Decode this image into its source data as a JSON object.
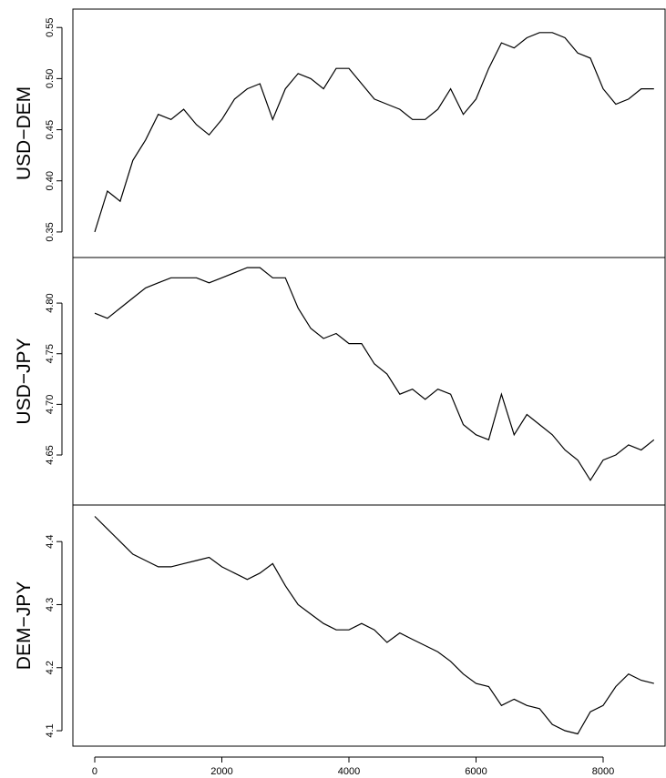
{
  "chart_data": [
    {
      "type": "line",
      "ylabel": "USD−DEM",
      "color": "#000000",
      "x": [
        0,
        200,
        400,
        600,
        800,
        1000,
        1200,
        1400,
        1600,
        1800,
        2000,
        2200,
        2400,
        2600,
        2800,
        3000,
        3200,
        3400,
        3600,
        3800,
        4000,
        4200,
        4400,
        4600,
        4800,
        5000,
        5200,
        5400,
        5600,
        5800,
        6000,
        6200,
        6400,
        6600,
        6800,
        7000,
        7200,
        7400,
        7600,
        7800,
        8000,
        8200,
        8400,
        8600,
        8800
      ],
      "values": [
        0.35,
        0.39,
        0.38,
        0.42,
        0.44,
        0.465,
        0.46,
        0.47,
        0.455,
        0.445,
        0.46,
        0.48,
        0.49,
        0.495,
        0.46,
        0.49,
        0.505,
        0.5,
        0.49,
        0.51,
        0.51,
        0.495,
        0.48,
        0.475,
        0.47,
        0.46,
        0.46,
        0.47,
        0.49,
        0.465,
        0.48,
        0.51,
        0.535,
        0.53,
        0.54,
        0.545,
        0.545,
        0.54,
        0.525,
        0.52,
        0.49,
        0.475,
        0.48,
        0.49,
        0.49
      ],
      "xlim": [
        -344,
        8975
      ],
      "ylim": [
        0.325,
        0.568
      ],
      "yticks": [
        0.35,
        {
          "value": 0.4,
          "label": "0.40"
        },
        0.45,
        {
          "value": 0.5,
          "label": "0.50"
        },
        0.55
      ]
    },
    {
      "type": "line",
      "ylabel": "USD−JPY",
      "color": "#000000",
      "x": [
        0,
        200,
        400,
        600,
        800,
        1000,
        1200,
        1400,
        1600,
        1800,
        2000,
        2200,
        2400,
        2600,
        2800,
        3000,
        3200,
        3400,
        3600,
        3800,
        4000,
        4200,
        4400,
        4600,
        4800,
        5000,
        5200,
        5400,
        5600,
        5800,
        6000,
        6200,
        6400,
        6600,
        6800,
        7000,
        7200,
        7400,
        7600,
        7800,
        8000,
        8200,
        8400,
        8600,
        8800
      ],
      "values": [
        4.79,
        4.785,
        4.795,
        4.805,
        4.815,
        4.82,
        4.825,
        4.825,
        4.825,
        4.82,
        4.825,
        4.83,
        4.835,
        4.835,
        4.825,
        4.825,
        4.795,
        4.775,
        4.765,
        4.77,
        4.76,
        4.76,
        4.74,
        4.73,
        4.71,
        4.715,
        4.705,
        4.715,
        4.71,
        4.68,
        4.67,
        4.665,
        4.71,
        4.67,
        4.69,
        4.68,
        4.67,
        4.655,
        4.645,
        4.625,
        4.645,
        4.65,
        4.66,
        4.655,
        4.665
      ],
      "xlim": [
        -344,
        8975
      ],
      "ylim": [
        4.6006,
        4.845
      ],
      "yticks": [
        4.65,
        {
          "value": 4.7,
          "label": "4.70"
        },
        4.75,
        {
          "value": 4.8,
          "label": "4.80"
        }
      ]
    },
    {
      "type": "line",
      "ylabel": "DEM−JPY",
      "color": "#000000",
      "x": [
        0,
        200,
        400,
        600,
        800,
        1000,
        1200,
        1400,
        1600,
        1800,
        2000,
        2200,
        2400,
        2600,
        2800,
        3000,
        3200,
        3400,
        3600,
        3800,
        4000,
        4200,
        4400,
        4600,
        4800,
        5000,
        5200,
        5400,
        5600,
        5800,
        6000,
        6200,
        6400,
        6600,
        6800,
        7000,
        7200,
        7400,
        7600,
        7800,
        8000,
        8200,
        8400,
        8600,
        8800
      ],
      "values": [
        4.44,
        4.42,
        4.4,
        4.38,
        4.37,
        4.36,
        4.36,
        4.365,
        4.37,
        4.375,
        4.36,
        4.35,
        4.34,
        4.35,
        4.365,
        4.33,
        4.3,
        4.285,
        4.27,
        4.26,
        4.26,
        4.27,
        4.26,
        4.24,
        4.255,
        4.245,
        4.235,
        4.225,
        4.21,
        4.19,
        4.175,
        4.17,
        4.14,
        4.15,
        4.14,
        4.135,
        4.11,
        4.1,
        4.095,
        4.13,
        4.14,
        4.17,
        4.19,
        4.18,
        4.175
      ],
      "xlim": [
        -344,
        8975
      ],
      "ylim": [
        4.0755,
        4.458
      ],
      "yticks": [
        4.1,
        4.2,
        4.3,
        4.4
      ],
      "xticks": [
        0,
        2000,
        4000,
        6000,
        8000
      ]
    }
  ]
}
